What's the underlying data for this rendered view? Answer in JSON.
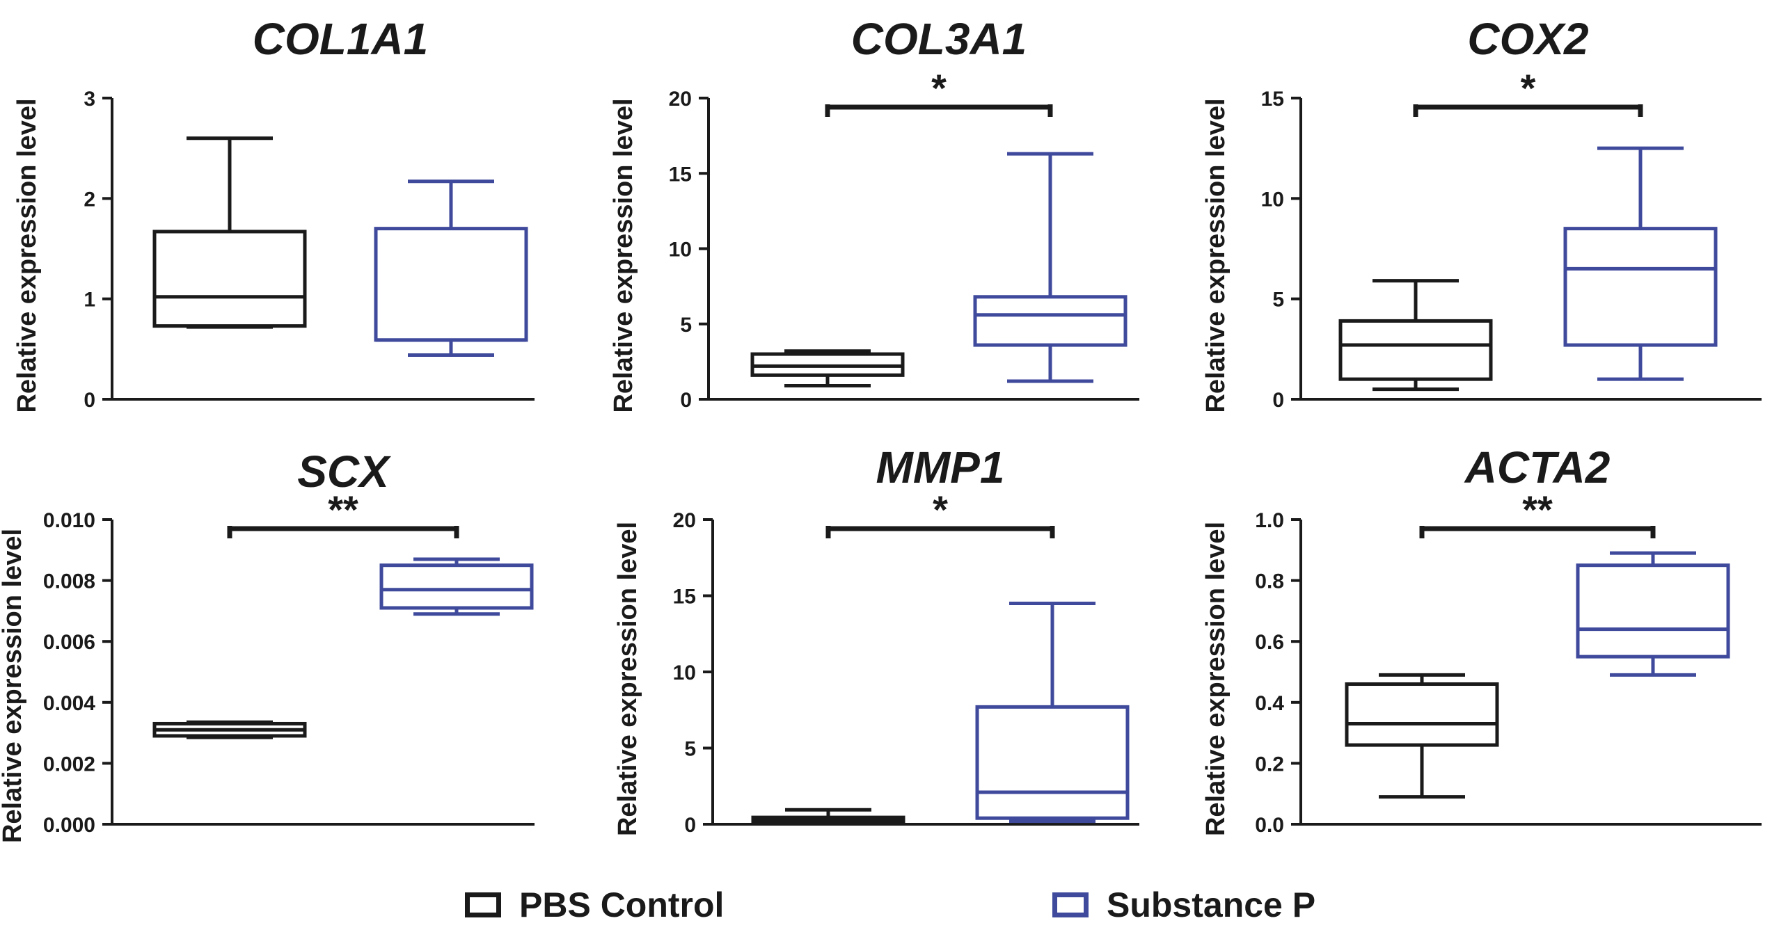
{
  "colors": {
    "control": "#1a1a1a",
    "treatment": "#3f4a9c",
    "axis": "#1a1a1a"
  },
  "axis_label": "Relative expression level",
  "legend": {
    "control_label": "PBS Control",
    "treatment_label": "Substance P"
  },
  "chart_data": [
    {
      "type": "box",
      "title": "COL1A1",
      "ylabel": "Relative expression level",
      "ylim": [
        0,
        3
      ],
      "yticks": [
        "0",
        "1",
        "2",
        "3"
      ],
      "ytick_values": [
        0,
        1,
        2,
        3
      ],
      "series": [
        {
          "name": "PBS Control",
          "min": 0.72,
          "q1": 0.73,
          "median": 1.02,
          "q3": 1.67,
          "max": 2.6
        },
        {
          "name": "Substance P",
          "min": 0.44,
          "q1": 0.59,
          "median": 0.59,
          "q3": 1.7,
          "max": 2.17
        }
      ],
      "significance": null
    },
    {
      "type": "box",
      "title": "COL3A1",
      "ylabel": "Relative expression level",
      "ylim": [
        0,
        20
      ],
      "yticks": [
        "0",
        "5",
        "10",
        "15",
        "20"
      ],
      "ytick_values": [
        0,
        5,
        10,
        15,
        20
      ],
      "series": [
        {
          "name": "PBS Control",
          "min": 0.9,
          "q1": 1.6,
          "median": 2.2,
          "q3": 3.0,
          "max": 3.2
        },
        {
          "name": "Substance P",
          "min": 1.2,
          "q1": 3.6,
          "median": 5.6,
          "q3": 6.8,
          "max": 16.3
        }
      ],
      "significance": "*"
    },
    {
      "type": "box",
      "title": "COX2",
      "ylabel": "Relative expression level",
      "ylim": [
        0,
        15
      ],
      "yticks": [
        "0",
        "5",
        "10",
        "15"
      ],
      "ytick_values": [
        0,
        5,
        10,
        15
      ],
      "series": [
        {
          "name": "PBS Control",
          "min": 0.5,
          "q1": 1.0,
          "median": 2.7,
          "q3": 3.9,
          "max": 5.9
        },
        {
          "name": "Substance P",
          "min": 1.0,
          "q1": 2.7,
          "median": 6.5,
          "q3": 8.5,
          "max": 12.5
        }
      ],
      "significance": "*"
    },
    {
      "type": "box",
      "title": "SCX",
      "ylabel": "Relative expression level",
      "ylim": [
        0,
        0.01
      ],
      "yticks": [
        "0.000",
        "0.002",
        "0.004",
        "0.006",
        "0.008",
        "0.010"
      ],
      "ytick_values": [
        0,
        0.002,
        0.004,
        0.006,
        0.008,
        0.01
      ],
      "series": [
        {
          "name": "PBS Control",
          "min": 0.00285,
          "q1": 0.0029,
          "median": 0.0031,
          "q3": 0.0033,
          "max": 0.00335
        },
        {
          "name": "Substance P",
          "min": 0.0069,
          "q1": 0.0071,
          "median": 0.0077,
          "q3": 0.0085,
          "max": 0.0087
        }
      ],
      "significance": "**"
    },
    {
      "type": "box",
      "title": "MMP1",
      "ylabel": "Relative expression level",
      "ylim": [
        0,
        20
      ],
      "yticks": [
        "0",
        "5",
        "10",
        "15",
        "20"
      ],
      "ytick_values": [
        0,
        5,
        10,
        15,
        20
      ],
      "series": [
        {
          "name": "PBS Control",
          "min": 0.1,
          "q1": 0.2,
          "median": 0.35,
          "q3": 0.45,
          "max": 0.95
        },
        {
          "name": "Substance P",
          "min": 0.2,
          "q1": 0.4,
          "median": 2.1,
          "q3": 7.7,
          "max": 14.5
        }
      ],
      "significance": "*"
    },
    {
      "type": "box",
      "title": "ACTA2",
      "ylabel": "Relative expression level",
      "ylim": [
        0,
        1.0
      ],
      "yticks": [
        "0.0",
        "0.2",
        "0.4",
        "0.6",
        "0.8",
        "1.0"
      ],
      "ytick_values": [
        0,
        0.2,
        0.4,
        0.6,
        0.8,
        1.0
      ],
      "series": [
        {
          "name": "PBS Control",
          "min": 0.09,
          "q1": 0.26,
          "median": 0.33,
          "q3": 0.46,
          "max": 0.49
        },
        {
          "name": "Substance P",
          "min": 0.49,
          "q1": 0.55,
          "median": 0.64,
          "q3": 0.85,
          "max": 0.89
        }
      ],
      "significance": "**"
    }
  ]
}
